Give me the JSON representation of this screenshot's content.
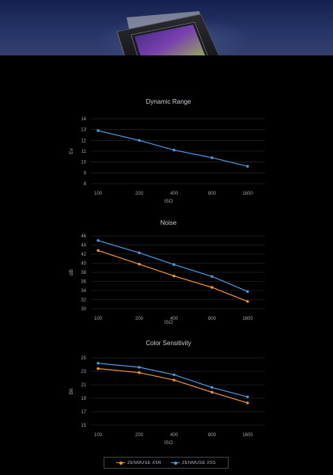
{
  "colors": {
    "background": "#000000",
    "grid": "#2c2f36",
    "text": "#b9bcc4",
    "banner": "#263466"
  },
  "banner": {
    "image": "camera-sensor-chip"
  },
  "legend": {
    "items": [
      {
        "label": "ZENMUSE X5R",
        "color": "#f0923a"
      },
      {
        "label": "ZENMUSE X5S",
        "color": "#4d98dd"
      }
    ]
  },
  "chart_data": [
    {
      "type": "line",
      "title": "Dynamic Range",
      "xlabel": "ISO",
      "ylabel": "Ev",
      "categories": [
        "100",
        "200",
        "400",
        "800",
        "1600"
      ],
      "yticks": [
        8,
        9,
        10,
        11,
        12,
        13,
        14
      ],
      "ylim": [
        8,
        14
      ],
      "grid": true,
      "series": [
        {
          "name": "ZENMUSE X5S",
          "color": "#4d98dd",
          "values": [
            12.9,
            12.0,
            11.1,
            10.4,
            9.6
          ]
        }
      ]
    },
    {
      "type": "line",
      "title": "Noise",
      "xlabel": "ISO",
      "ylabel": "dB",
      "categories": [
        "100",
        "200",
        "400",
        "800",
        "1600"
      ],
      "yticks": [
        30,
        32,
        34,
        36,
        38,
        40,
        42,
        44,
        46
      ],
      "ylim": [
        30,
        46
      ],
      "grid": true,
      "series": [
        {
          "name": "ZENMUSE X5R",
          "color": "#f0923a",
          "values": [
            42.8,
            39.8,
            37.2,
            34.7,
            31.6
          ]
        },
        {
          "name": "ZENMUSE X5S",
          "color": "#4d98dd",
          "values": [
            45.0,
            42.3,
            39.7,
            37.1,
            33.8
          ]
        }
      ]
    },
    {
      "type": "line",
      "title": "Color Sensitivity",
      "xlabel": "ISO",
      "ylabel": "Bit",
      "categories": [
        "100",
        "200",
        "400",
        "800",
        "1600"
      ],
      "yticks": [
        15,
        17,
        19,
        21,
        23,
        25
      ],
      "ylim": [
        15,
        25
      ],
      "grid": true,
      "series": [
        {
          "name": "ZENMUSE X5R",
          "color": "#f0923a",
          "values": [
            23.4,
            22.8,
            21.7,
            19.9,
            18.3
          ]
        },
        {
          "name": "ZENMUSE X5S",
          "color": "#4d98dd",
          "values": [
            24.2,
            23.6,
            22.5,
            20.6,
            19.2
          ]
        }
      ]
    }
  ]
}
